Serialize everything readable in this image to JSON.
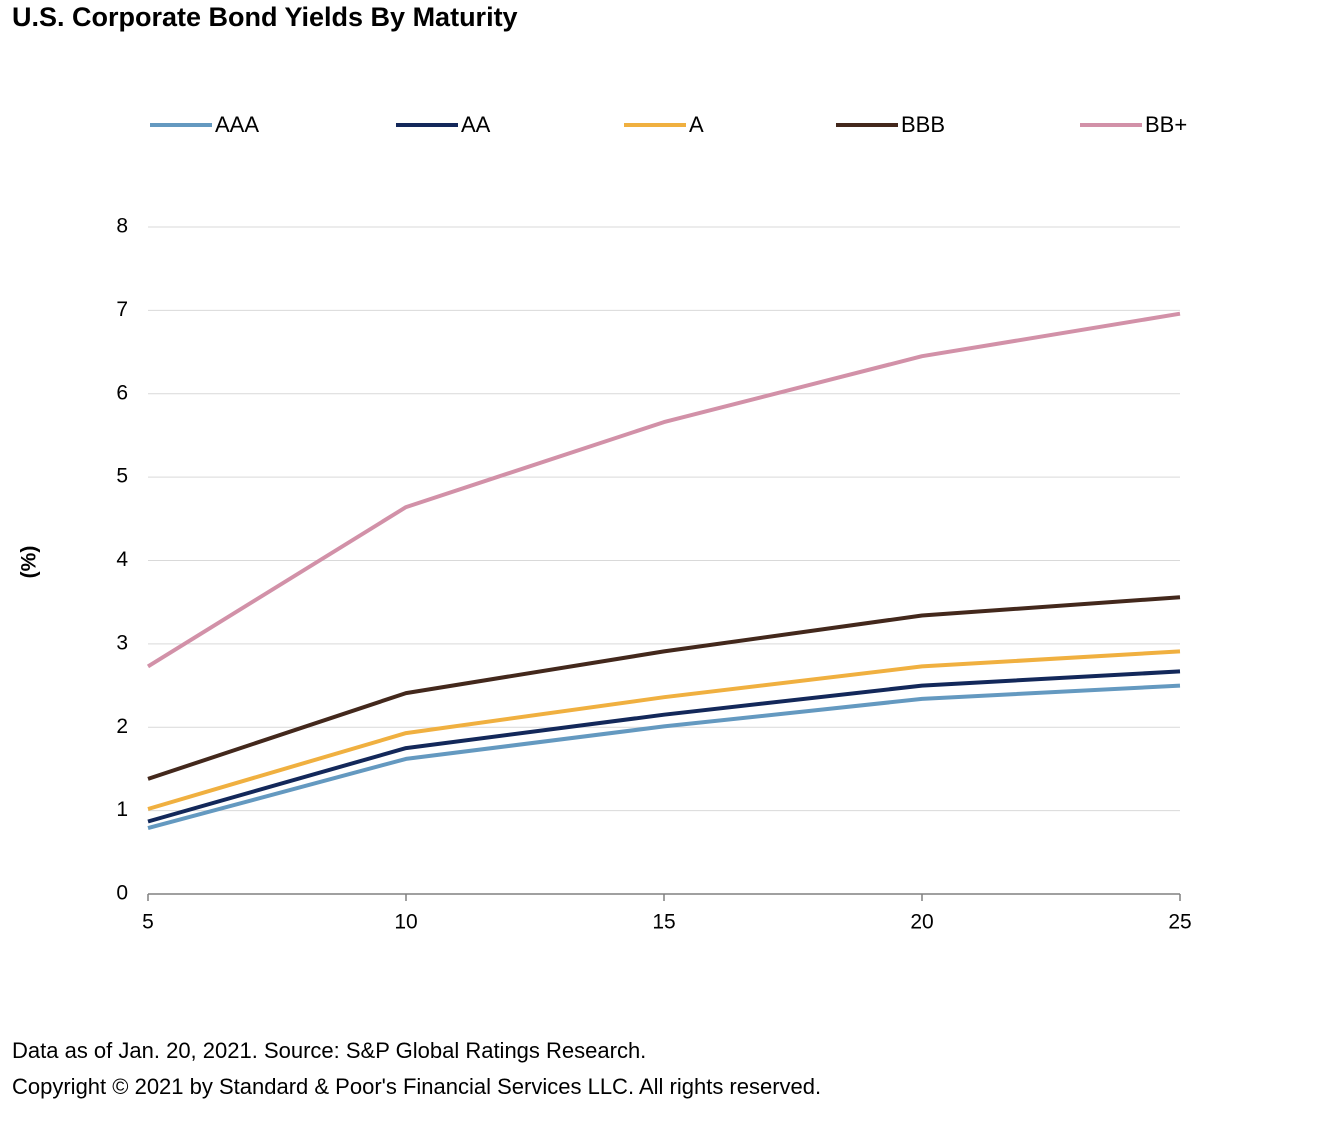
{
  "chart_data": {
    "type": "line",
    "title": "U.S. Corporate Bond Yields By Maturity",
    "xlabel": "",
    "ylabel": "(%)",
    "x": [
      5,
      10,
      15,
      20,
      25
    ],
    "xlim": [
      5,
      25
    ],
    "ylim": [
      0,
      8
    ],
    "yticks": [
      0,
      1,
      2,
      3,
      4,
      5,
      6,
      7,
      8
    ],
    "xticks": [
      5,
      10,
      15,
      20,
      25
    ],
    "grid": "horizontal",
    "legend_position": "top",
    "series": [
      {
        "name": "AAA",
        "color": "#6499C0",
        "values": [
          0.79,
          1.62,
          2.01,
          2.34,
          2.5
        ]
      },
      {
        "name": "AA",
        "color": "#13285A",
        "values": [
          0.87,
          1.75,
          2.15,
          2.5,
          2.67
        ]
      },
      {
        "name": "A",
        "color": "#F0B040",
        "values": [
          1.02,
          1.93,
          2.36,
          2.73,
          2.91
        ]
      },
      {
        "name": "BBB",
        "color": "#43281C",
        "values": [
          1.38,
          2.41,
          2.91,
          3.34,
          3.56
        ]
      },
      {
        "name": "BB+",
        "color": "#D291A8",
        "values": [
          2.73,
          4.64,
          5.66,
          6.45,
          6.96
        ]
      }
    ]
  },
  "footer": {
    "source": "Data as of Jan. 20, 2021. Source: S&P Global Ratings Research.",
    "copyright": "Copyright © 2021 by Standard & Poor's Financial Services LLC. All rights reserved."
  }
}
